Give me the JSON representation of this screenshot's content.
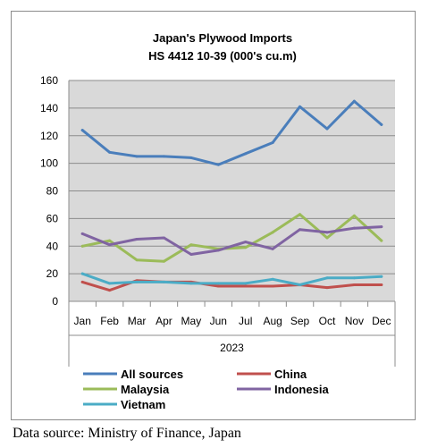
{
  "chart_data": {
    "type": "line",
    "title": "Japan's Plywood Imports",
    "subtitle": "HS 4412 10-39  (000's cu.m)",
    "categories": [
      "Jan",
      "Feb",
      "Mar",
      "Apr",
      "May",
      "Jun",
      "Jul",
      "Aug",
      "Sep",
      "Oct",
      "Nov",
      "Dec"
    ],
    "x_group_label": "2023",
    "ylim": [
      0,
      160
    ],
    "yticks": [
      0,
      20,
      40,
      60,
      80,
      100,
      120,
      140,
      160
    ],
    "grid": true,
    "legend_position": "bottom",
    "series": [
      {
        "name": "All sources",
        "color": "#4a7ebb",
        "values": [
          124,
          108,
          105,
          105,
          104,
          99,
          107,
          115,
          141,
          125,
          145,
          128
        ]
      },
      {
        "name": "China",
        "color": "#c0504d",
        "values": [
          14,
          8,
          15,
          14,
          14,
          11,
          11,
          11,
          12,
          10,
          12,
          12
        ]
      },
      {
        "name": "Malaysia",
        "color": "#9bbb59",
        "values": [
          40,
          44,
          30,
          29,
          41,
          38,
          39,
          50,
          63,
          46,
          62,
          44
        ]
      },
      {
        "name": "Indonesia",
        "color": "#8064a2",
        "values": [
          49,
          41,
          45,
          46,
          34,
          37,
          43,
          38,
          52,
          50,
          53,
          54
        ]
      },
      {
        "name": "Vietnam",
        "color": "#4bacc6",
        "values": [
          20,
          13,
          14,
          14,
          13,
          13,
          13,
          16,
          12,
          17,
          17,
          18
        ]
      }
    ]
  },
  "source_note": "Data source: Ministry of Finance, Japan"
}
